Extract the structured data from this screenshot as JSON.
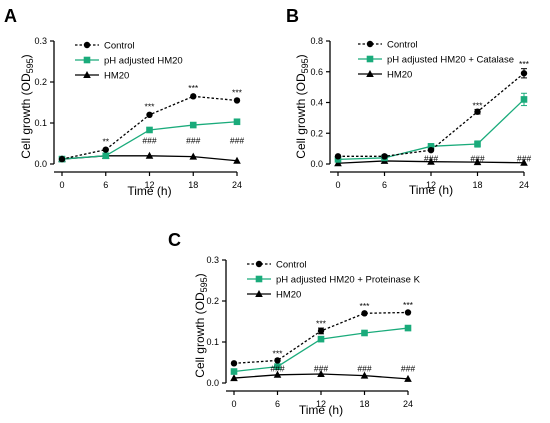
{
  "chart_data": [
    {
      "panel": "A",
      "type": "line",
      "x": [
        0,
        6,
        12,
        18,
        24
      ],
      "xlabel": "Time (h)",
      "ylabel": "Cell growth (OD595)",
      "ylabel_main": "Cell growth (OD",
      "ylabel_sub": "595",
      "ylabel_close": ")",
      "ylim": [
        0,
        0.3
      ],
      "yticks": [
        "0.0",
        "0.1",
        "0.2",
        "0.3"
      ],
      "ytick_values": [
        0,
        0.1,
        0.2,
        0.3
      ],
      "xticks": [
        "0",
        "6",
        "12",
        "18",
        "24"
      ],
      "legend_position": "top-left",
      "series": [
        {
          "name": "Control",
          "marker": "circle",
          "color": "#000000",
          "dashed": true,
          "values": [
            0.012,
            0.035,
            0.12,
            0.165,
            0.155
          ],
          "errors": [
            0,
            0,
            0,
            0,
            0
          ]
        },
        {
          "name": "pH adjusted HM20",
          "marker": "square",
          "color": "#1aab7b",
          "dashed": false,
          "values": [
            0.012,
            0.02,
            0.083,
            0.095,
            0.103
          ],
          "errors": [
            0,
            0,
            0,
            0,
            0.006
          ]
        },
        {
          "name": "HM20",
          "marker": "triangle",
          "color": "#000000",
          "dashed": false,
          "values": [
            0.012,
            0.02,
            0.02,
            0.018,
            0.008
          ],
          "errors": [
            0,
            0,
            0,
            0,
            0
          ]
        }
      ],
      "annotations": [
        {
          "text": "**",
          "x": 6,
          "y": 0.055
        },
        {
          "text": "***",
          "x": 12,
          "y": 0.14
        },
        {
          "text": "***",
          "x": 18,
          "y": 0.185
        },
        {
          "text": "***",
          "x": 24,
          "y": 0.175
        },
        {
          "text": "###",
          "x": 12,
          "y": 0.057
        },
        {
          "text": "###",
          "x": 18,
          "y": 0.057
        },
        {
          "text": "###",
          "x": 24,
          "y": 0.057
        }
      ]
    },
    {
      "panel": "B",
      "type": "line",
      "x": [
        0,
        6,
        12,
        18,
        24
      ],
      "xlabel": "Time (h)",
      "ylabel": "Cell growth (OD595)",
      "ylabel_main": "Cell growth (OD",
      "ylabel_sub": "595",
      "ylabel_close": ")",
      "ylim": [
        0,
        0.8
      ],
      "yticks": [
        "0.0",
        "0.2",
        "0.4",
        "0.6",
        "0.8"
      ],
      "ytick_values": [
        0,
        0.2,
        0.4,
        0.6,
        0.8
      ],
      "xticks": [
        "0",
        "6",
        "12",
        "18",
        "24"
      ],
      "legend_position": "top-left",
      "series": [
        {
          "name": "Control",
          "marker": "circle",
          "color": "#000000",
          "dashed": true,
          "values": [
            0.05,
            0.05,
            0.09,
            0.34,
            0.59
          ],
          "errors": [
            0,
            0,
            0,
            0.015,
            0.03
          ]
        },
        {
          "name": "pH adjusted HM20 + Catalase",
          "marker": "square",
          "color": "#1aab7b",
          "dashed": false,
          "values": [
            0.03,
            0.04,
            0.115,
            0.13,
            0.42
          ],
          "errors": [
            0,
            0,
            0.01,
            0.02,
            0.04
          ]
        },
        {
          "name": "HM20",
          "marker": "triangle",
          "color": "#000000",
          "dashed": false,
          "values": [
            0.005,
            0.02,
            0.015,
            0.012,
            0.008
          ],
          "errors": [
            0,
            0,
            0,
            0,
            0
          ]
        }
      ],
      "annotations": [
        {
          "text": "***",
          "x": 18,
          "y": 0.38
        },
        {
          "text": "***",
          "x": 24,
          "y": 0.65
        },
        {
          "text": "###",
          "x": 12,
          "y": 0.035
        },
        {
          "text": "###",
          "x": 18,
          "y": 0.035
        },
        {
          "text": "###",
          "x": 24,
          "y": 0.035
        }
      ]
    },
    {
      "panel": "C",
      "type": "line",
      "x": [
        0,
        6,
        12,
        18,
        24
      ],
      "xlabel": "Time (h)",
      "ylabel": "Cell growth (OD595)",
      "ylabel_main": "Cell growth (OD",
      "ylabel_sub": "595",
      "ylabel_close": ")",
      "ylim": [
        0,
        0.3
      ],
      "yticks": [
        "0.0",
        "0.1",
        "0.2",
        "0.3"
      ],
      "ytick_values": [
        0,
        0.1,
        0.2,
        0.3
      ],
      "xticks": [
        "0",
        "6",
        "12",
        "18",
        "24"
      ],
      "legend_position": "top-left",
      "series": [
        {
          "name": "Control",
          "marker": "circle",
          "color": "#000000",
          "dashed": true,
          "values": [
            0.048,
            0.055,
            0.127,
            0.17,
            0.172
          ],
          "errors": [
            0,
            0,
            0.007,
            0,
            0
          ]
        },
        {
          "name": "pH adjusted HM20 + Proteinase K",
          "marker": "square",
          "color": "#1aab7b",
          "dashed": false,
          "values": [
            0.028,
            0.04,
            0.107,
            0.122,
            0.134
          ],
          "errors": [
            0,
            0,
            0,
            0,
            0
          ]
        },
        {
          "name": "HM20",
          "marker": "triangle",
          "color": "#000000",
          "dashed": false,
          "values": [
            0.012,
            0.02,
            0.022,
            0.018,
            0.01
          ],
          "errors": [
            0,
            0,
            0,
            0,
            0
          ]
        }
      ],
      "annotations": [
        {
          "text": "***",
          "x": 6,
          "y": 0.072
        },
        {
          "text": "***",
          "x": 12,
          "y": 0.145
        },
        {
          "text": "***",
          "x": 18,
          "y": 0.188
        },
        {
          "text": "***",
          "x": 24,
          "y": 0.19
        },
        {
          "text": "###",
          "x": 6,
          "y": 0.035
        },
        {
          "text": "###",
          "x": 12,
          "y": 0.035
        },
        {
          "text": "###",
          "x": 18,
          "y": 0.035
        },
        {
          "text": "###",
          "x": 24,
          "y": 0.035
        }
      ]
    }
  ]
}
